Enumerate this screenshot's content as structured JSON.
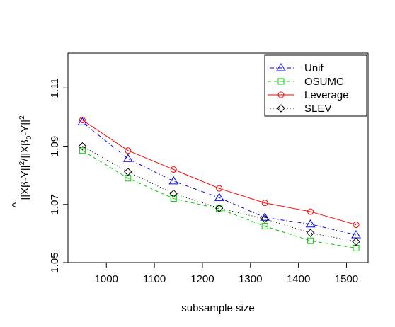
{
  "chart_data": {
    "type": "line",
    "title": "",
    "xlabel": "subsample size",
    "ylabel": "||Xβ̂-Y||²/||Xβ₀-Y||²",
    "ylabel_parts": {
      "main": "||Xβ-Y||",
      "hat": "^",
      "sq": "2",
      "slash": "/||Xβ",
      "sub": "0",
      "tail": "-Y||"
    },
    "x": [
      950,
      1045,
      1140,
      1235,
      1330,
      1425,
      1520
    ],
    "xlim": [
      920,
      1545
    ],
    "ylim": [
      1.05,
      1.122
    ],
    "xticks": [
      "1000",
      "1100",
      "1200",
      "1300",
      "1400",
      "1500"
    ],
    "yticks": [
      "1.05",
      "1.07",
      "1.09",
      "1.11"
    ],
    "grid": false,
    "legend_position": "top-right",
    "series": [
      {
        "name": "Unif",
        "color": "#0000ff",
        "marker": "triangle",
        "line_style": "dotdash",
        "values": [
          1.0983,
          1.0857,
          1.078,
          1.0723,
          1.0655,
          1.0632,
          1.0595
        ]
      },
      {
        "name": "OSUMC",
        "color": "#00cc00",
        "marker": "square",
        "line_style": "dashed",
        "values": [
          1.0885,
          1.079,
          1.072,
          1.0685,
          1.0625,
          1.0575,
          1.055
        ]
      },
      {
        "name": "Leverage",
        "color": "#ff0000",
        "marker": "circle",
        "line_style": "solid",
        "values": [
          1.099,
          1.0885,
          1.082,
          1.0755,
          1.0705,
          1.0675,
          1.063
        ]
      },
      {
        "name": "SLEV",
        "color": "#000000",
        "marker": "diamond",
        "line_style": "dotted",
        "values": [
          1.09,
          1.0812,
          1.0737,
          1.0687,
          1.065,
          1.0602,
          1.0572
        ]
      }
    ]
  }
}
